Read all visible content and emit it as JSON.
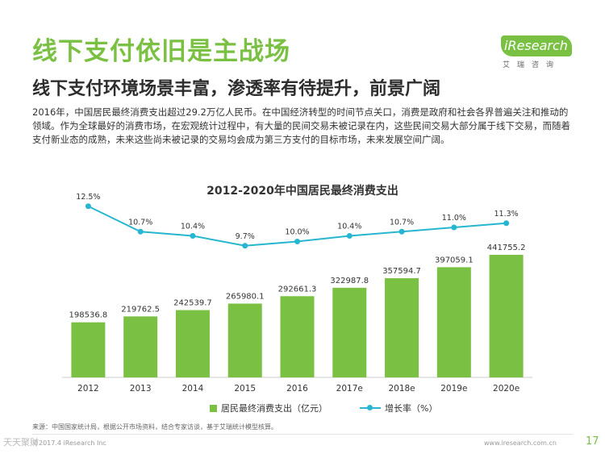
{
  "header": {
    "title": "线下支付依旧是主战场",
    "subtitle": "线下支付环境场景丰富，渗透率有待提升，前景广阔",
    "body": "2016年，中国居民最终消费支出超过29.2万亿人民币。在中国经济转型的时间节点关口，消费是政府和社会各界普遍关注和推动的领域。作为全球最好的消费市场，在宏观统计过程中，有大量的民间交易未被记录在内，这些民间交易大部分属于线下交易，而随着支付新业态的成熟，未来这些尚未被记录的交易均会成为第三方支付的目标市场，未来发展空间广阔。"
  },
  "logo": {
    "text": "iResearch",
    "sub": "艾瑞咨询"
  },
  "chart_data": {
    "type": "bar+line",
    "title": "2012-2020年中国居民最终消费支出",
    "categories": [
      "2012",
      "2013",
      "2014",
      "2015",
      "2016",
      "2017e",
      "2018e",
      "2019e",
      "2020e"
    ],
    "series": [
      {
        "name": "居民最终消费支出（亿元）",
        "type": "bar",
        "values": [
          198536.8,
          219762.5,
          242539.7,
          265980.1,
          292661.3,
          322987.8,
          357594.7,
          397059.1,
          441755.2
        ],
        "labels": [
          "198536.8",
          "219762.5",
          "242539.7",
          "265980.1",
          "292661.3",
          "322987.8",
          "357594.7",
          "397059.1",
          "441755.2"
        ],
        "color": "#7ac143"
      },
      {
        "name": "增长率（%）",
        "type": "line",
        "values": [
          12.5,
          10.7,
          10.4,
          9.7,
          10.0,
          10.4,
          10.7,
          11.0,
          11.3
        ],
        "labels": [
          "12.5%",
          "10.7%",
          "10.4%",
          "9.7%",
          "10.0%",
          "10.4%",
          "10.7%",
          "11.0%",
          "11.3%"
        ],
        "color": "#27b6cf"
      }
    ],
    "legend": [
      "居民最终消费支出（亿元）",
      "增长率（%）"
    ],
    "legend_position": "bottom"
  },
  "footer": {
    "source": "来源：中国国家统计局，根据公开市场资料，结合专家访谈，基于艾瑞统计模型核算。",
    "copyright": "©2017.4 iResearch Inc",
    "website": "www.iresearch.com.cn",
    "page_number": "17",
    "watermark": "天天聚财"
  }
}
